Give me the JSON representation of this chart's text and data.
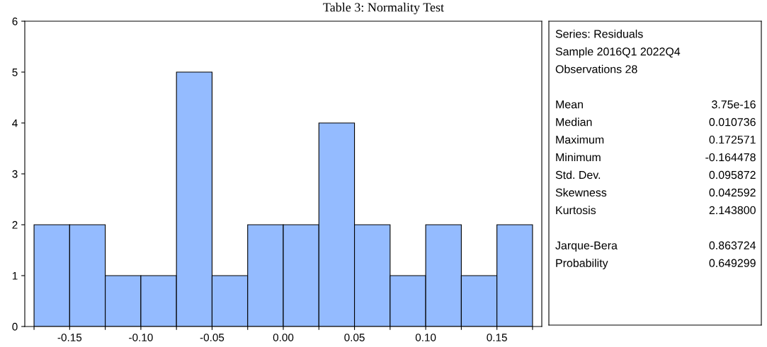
{
  "chart_data": [
    {
      "type": "histogram",
      "title": "Table 3: Normality Test",
      "bins": [
        -0.175,
        -0.15,
        -0.125,
        -0.1,
        -0.075,
        -0.05,
        -0.025,
        0.0,
        0.025,
        0.05,
        0.075,
        0.1,
        0.125,
        0.15,
        0.175
      ],
      "values": [
        2,
        2,
        1,
        1,
        5,
        1,
        2,
        2,
        4,
        2,
        1,
        2,
        1,
        2
      ],
      "color": "#94bbff",
      "xlim": [
        -0.1815,
        0.1815
      ],
      "xticks": [
        {
          "value": -0.175,
          "label": null
        },
        {
          "value": -0.15,
          "label": "-0.15"
        },
        {
          "value": -0.125,
          "label": null
        },
        {
          "value": -0.1,
          "label": "-0.10"
        },
        {
          "value": -0.075,
          "label": null
        },
        {
          "value": -0.05,
          "label": "-0.05"
        },
        {
          "value": -0.025,
          "label": null
        },
        {
          "value": 0.0,
          "label": "0.00"
        },
        {
          "value": 0.025,
          "label": null
        },
        {
          "value": 0.05,
          "label": "0.05"
        },
        {
          "value": 0.075,
          "label": null
        },
        {
          "value": 0.1,
          "label": "0.10"
        },
        {
          "value": 0.125,
          "label": null
        },
        {
          "value": 0.15,
          "label": "0.15"
        },
        {
          "value": 0.175,
          "label": null
        }
      ],
      "ylim": [
        0,
        6
      ],
      "yticks": [
        0,
        1,
        2,
        3,
        4,
        5,
        6
      ],
      "grid": false
    },
    {
      "type": "other",
      "annotations": [
        "Series: Residuals",
        "Sample 2016Q1 2022Q4",
        "Observations 28",
        "Mean",
        "3.75e-16",
        "Median",
        "0.010736",
        "Maximum",
        "0.172571",
        "Minimum",
        "-0.164478",
        "Std. Dev.",
        "0.095872",
        "Skewness",
        "0.042592",
        "Kurtosis",
        "2.143800",
        "Jarque-Bera",
        "0.863724",
        "Probability",
        "0.649299"
      ]
    }
  ]
}
